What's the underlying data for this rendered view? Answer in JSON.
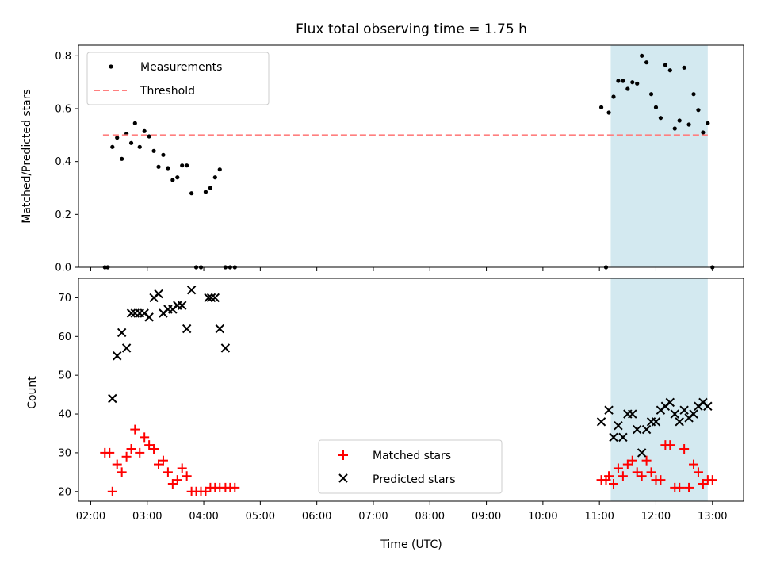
{
  "chart_data": {
    "title": "Flux total observing time = 1.75 h",
    "xlabel": "Time (UTC)",
    "x_ticks": [
      "02:00",
      "03:00",
      "04:00",
      "05:00",
      "06:00",
      "07:00",
      "08:00",
      "09:00",
      "10:00",
      "11:00",
      "12:00",
      "13:00"
    ],
    "x_range": [
      "01:47",
      "13:33"
    ],
    "highlight_span": [
      "11:12",
      "12:55"
    ],
    "highlight_color": "#d3e9f0",
    "panels": [
      {
        "type": "scatter",
        "ylabel": "Matched/Predicted stars",
        "ylim": [
          0,
          0.84
        ],
        "yticks": [
          "0.0",
          "0.2",
          "0.4",
          "0.6",
          "0.8"
        ],
        "legend_position": "upper-left",
        "series": [
          {
            "name": "Measurements",
            "marker": "dot",
            "color": "#000000",
            "points": [
              [
                "02:15",
                0
              ],
              [
                "02:18",
                0
              ],
              [
                "02:23",
                0.455
              ],
              [
                "02:28",
                0.49
              ],
              [
                "02:33",
                0.41
              ],
              [
                "02:38",
                0.505
              ],
              [
                "02:43",
                0.47
              ],
              [
                "02:47",
                0.545
              ],
              [
                "02:52",
                0.455
              ],
              [
                "02:57",
                0.515
              ],
              [
                "03:02",
                0.495
              ],
              [
                "03:07",
                0.44
              ],
              [
                "03:12",
                0.38
              ],
              [
                "03:17",
                0.425
              ],
              [
                "03:22",
                0.375
              ],
              [
                "03:27",
                0.33
              ],
              [
                "03:32",
                0.34
              ],
              [
                "03:37",
                0.385
              ],
              [
                "03:42",
                0.385
              ],
              [
                "03:47",
                0.28
              ],
              [
                "03:52",
                0
              ],
              [
                "03:57",
                0
              ],
              [
                "04:02",
                0.285
              ],
              [
                "04:07",
                0.3
              ],
              [
                "04:12",
                0.34
              ],
              [
                "04:17",
                0.37
              ],
              [
                "04:23",
                0
              ],
              [
                "04:28",
                0
              ],
              [
                "04:33",
                0
              ],
              [
                "11:02",
                0.605
              ],
              [
                "11:07",
                0
              ],
              [
                "11:10",
                0.585
              ],
              [
                "11:15",
                0.645
              ],
              [
                "11:20",
                0.705
              ],
              [
                "11:25",
                0.705
              ],
              [
                "11:30",
                0.675
              ],
              [
                "11:35",
                0.7
              ],
              [
                "11:40",
                0.695
              ],
              [
                "11:45",
                0.8
              ],
              [
                "11:50",
                0.775
              ],
              [
                "11:55",
                0.655
              ],
              [
                "12:00",
                0.605
              ],
              [
                "12:05",
                0.565
              ],
              [
                "12:10",
                0.765
              ],
              [
                "12:15",
                0.745
              ],
              [
                "12:20",
                0.525
              ],
              [
                "12:25",
                0.555
              ],
              [
                "12:30",
                0.755
              ],
              [
                "12:35",
                0.54
              ],
              [
                "12:40",
                0.655
              ],
              [
                "12:45",
                0.595
              ],
              [
                "12:50",
                0.51
              ],
              [
                "12:55",
                0.545
              ],
              [
                "13:00",
                0
              ]
            ]
          },
          {
            "name": "Threshold",
            "marker": "dashed-line",
            "color": "#ff7f7f",
            "value": 0.5,
            "x": [
              "02:13",
              "12:55"
            ]
          }
        ]
      },
      {
        "type": "scatter",
        "ylabel": "Count",
        "ylim": [
          17.5,
          75
        ],
        "yticks": [
          "20",
          "30",
          "40",
          "50",
          "60",
          "70"
        ],
        "legend_position": "lower-center",
        "series": [
          {
            "name": "Matched stars",
            "marker": "plus",
            "color": "#ff0000",
            "points": [
              [
                "02:15",
                30
              ],
              [
                "02:20",
                30
              ],
              [
                "02:23",
                20
              ],
              [
                "02:28",
                27
              ],
              [
                "02:33",
                25
              ],
              [
                "02:38",
                29
              ],
              [
                "02:43",
                31
              ],
              [
                "02:47",
                36
              ],
              [
                "02:52",
                30
              ],
              [
                "02:57",
                34
              ],
              [
                "03:02",
                32
              ],
              [
                "03:07",
                31
              ],
              [
                "03:12",
                27
              ],
              [
                "03:17",
                28
              ],
              [
                "03:22",
                25
              ],
              [
                "03:27",
                22
              ],
              [
                "03:32",
                23
              ],
              [
                "03:37",
                26
              ],
              [
                "03:42",
                24
              ],
              [
                "03:47",
                20
              ],
              [
                "03:52",
                20
              ],
              [
                "03:57",
                20
              ],
              [
                "04:02",
                20
              ],
              [
                "04:07",
                21
              ],
              [
                "04:12",
                21
              ],
              [
                "04:17",
                21
              ],
              [
                "04:23",
                21
              ],
              [
                "04:28",
                21
              ],
              [
                "04:33",
                21
              ],
              [
                "11:02",
                23
              ],
              [
                "11:07",
                23
              ],
              [
                "11:10",
                24
              ],
              [
                "11:15",
                22
              ],
              [
                "11:20",
                26
              ],
              [
                "11:25",
                24
              ],
              [
                "11:30",
                27
              ],
              [
                "11:35",
                28
              ],
              [
                "11:40",
                25
              ],
              [
                "11:45",
                24
              ],
              [
                "11:50",
                28
              ],
              [
                "11:55",
                25
              ],
              [
                "12:00",
                23
              ],
              [
                "12:05",
                23
              ],
              [
                "12:10",
                32
              ],
              [
                "12:15",
                32
              ],
              [
                "12:20",
                21
              ],
              [
                "12:25",
                21
              ],
              [
                "12:30",
                31
              ],
              [
                "12:35",
                21
              ],
              [
                "12:40",
                27
              ],
              [
                "12:45",
                25
              ],
              [
                "12:50",
                22
              ],
              [
                "12:55",
                23
              ],
              [
                "13:00",
                23
              ]
            ]
          },
          {
            "name": "Predicted stars",
            "marker": "x",
            "color": "#000000",
            "points": [
              [
                "02:23",
                44
              ],
              [
                "02:28",
                55
              ],
              [
                "02:33",
                61
              ],
              [
                "02:38",
                57
              ],
              [
                "02:43",
                66
              ],
              [
                "02:47",
                66
              ],
              [
                "02:52",
                66
              ],
              [
                "02:57",
                66
              ],
              [
                "03:02",
                65
              ],
              [
                "03:07",
                70
              ],
              [
                "03:12",
                71
              ],
              [
                "03:17",
                66
              ],
              [
                "03:22",
                67
              ],
              [
                "03:27",
                67
              ],
              [
                "03:32",
                68
              ],
              [
                "03:37",
                68
              ],
              [
                "03:42",
                62
              ],
              [
                "03:47",
                72
              ],
              [
                "04:05",
                70
              ],
              [
                "04:08",
                70
              ],
              [
                "04:12",
                70
              ],
              [
                "04:17",
                62
              ],
              [
                "04:23",
                57
              ],
              [
                "11:02",
                38
              ],
              [
                "11:10",
                41
              ],
              [
                "11:15",
                34
              ],
              [
                "11:20",
                37
              ],
              [
                "11:25",
                34
              ],
              [
                "11:30",
                40
              ],
              [
                "11:35",
                40
              ],
              [
                "11:40",
                36
              ],
              [
                "11:45",
                30
              ],
              [
                "11:50",
                36
              ],
              [
                "11:55",
                38
              ],
              [
                "12:00",
                38
              ],
              [
                "12:05",
                41
              ],
              [
                "12:10",
                42
              ],
              [
                "12:15",
                43
              ],
              [
                "12:20",
                40
              ],
              [
                "12:25",
                38
              ],
              [
                "12:30",
                41
              ],
              [
                "12:35",
                39
              ],
              [
                "12:40",
                40
              ],
              [
                "12:45",
                42
              ],
              [
                "12:50",
                43
              ],
              [
                "12:55",
                42
              ]
            ]
          }
        ]
      }
    ]
  }
}
